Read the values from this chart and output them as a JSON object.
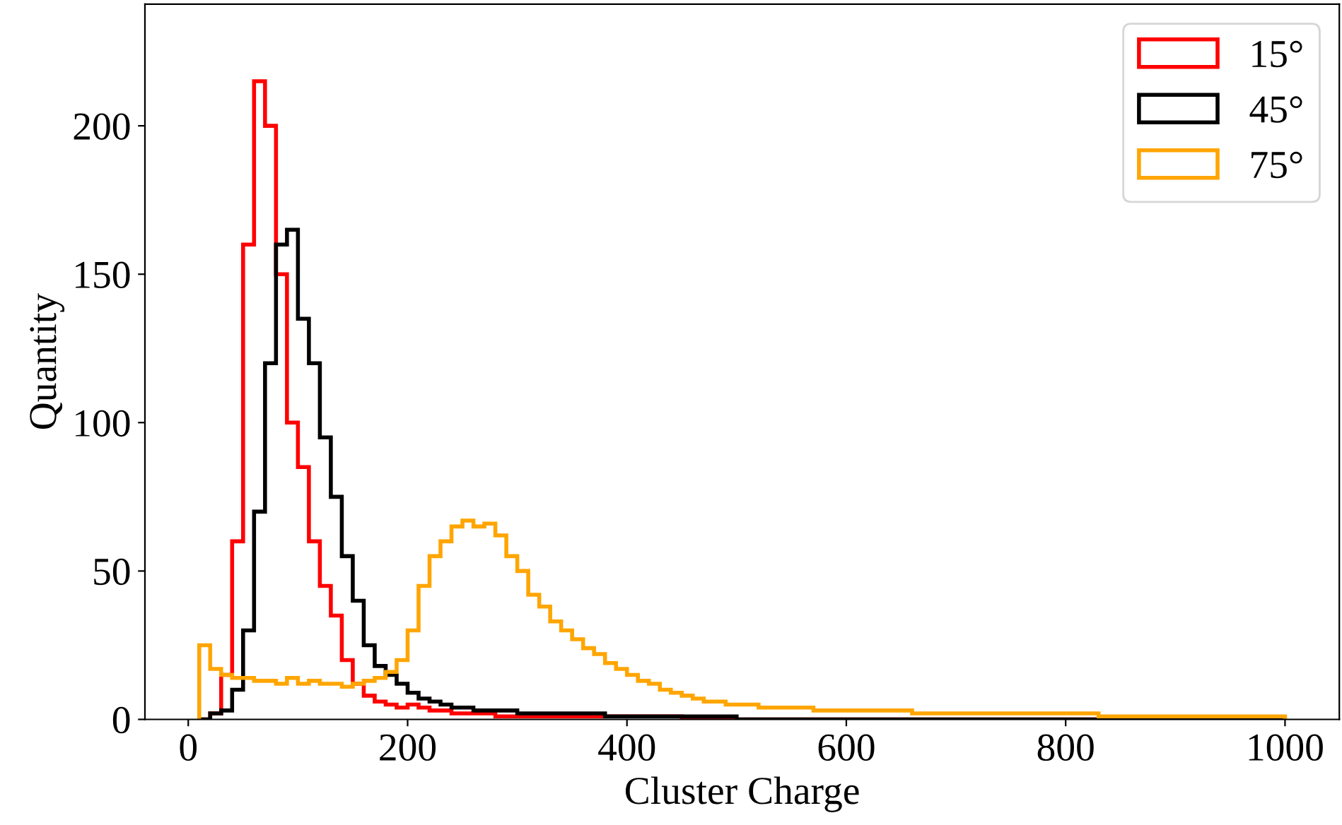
{
  "chart_data": {
    "type": "histogram",
    "xlabel": "Cluster Charge",
    "ylabel": "Quantity",
    "bins": [
      10,
      20,
      30,
      40,
      50,
      60,
      70,
      80,
      90,
      100,
      110,
      120,
      130,
      140,
      150,
      160,
      170,
      180,
      190,
      200,
      210,
      220,
      230,
      240,
      250,
      260,
      270,
      280,
      290,
      300,
      310,
      320,
      330,
      340,
      350,
      360,
      370,
      380,
      390,
      400,
      410,
      420,
      430,
      440,
      450,
      460,
      470,
      480,
      490,
      500,
      510,
      520,
      530,
      540,
      550,
      560,
      570,
      580,
      590,
      600,
      610,
      620,
      630,
      640,
      650,
      660,
      670,
      680,
      690,
      700,
      710,
      720,
      730,
      740,
      750,
      760,
      770,
      780,
      790,
      800,
      810,
      820,
      830,
      840,
      850,
      860,
      870,
      880,
      890,
      900,
      910,
      920,
      930,
      940,
      950,
      960,
      970,
      980,
      990,
      1000
    ],
    "series": [
      {
        "name": "15°",
        "color": "#ff0000",
        "values": [
          0,
          2,
          15,
          60,
          160,
          215,
          200,
          150,
          100,
          85,
          60,
          45,
          35,
          20,
          12,
          8,
          6,
          5,
          4,
          5,
          4,
          3,
          3,
          2,
          2,
          2,
          2,
          1,
          1,
          1,
          1,
          1,
          1,
          1,
          1,
          1,
          1,
          1,
          1,
          1,
          1,
          1,
          1,
          1,
          0,
          0,
          0,
          0,
          0,
          0,
          0,
          0,
          0,
          0,
          0,
          0,
          0,
          0,
          0,
          0,
          0,
          0,
          0,
          0,
          0,
          0,
          0,
          0,
          0,
          0,
          0,
          0,
          0,
          0,
          0,
          0,
          0,
          0,
          0,
          0,
          0,
          0,
          0,
          0,
          0,
          0,
          0,
          0,
          0,
          0,
          0,
          0,
          0,
          0,
          0,
          0,
          0,
          0,
          0
        ]
      },
      {
        "name": "45°",
        "color": "#000000",
        "values": [
          0,
          2,
          3,
          10,
          30,
          70,
          120,
          160,
          165,
          135,
          120,
          95,
          75,
          55,
          40,
          25,
          18,
          15,
          12,
          9,
          7,
          6,
          5,
          4,
          4,
          3,
          3,
          3,
          3,
          2,
          2,
          2,
          2,
          2,
          2,
          2,
          2,
          1,
          1,
          1,
          1,
          1,
          1,
          1,
          1,
          1,
          1,
          1,
          1,
          0,
          0,
          0,
          0,
          0,
          0,
          0,
          0,
          0,
          0,
          0,
          0,
          0,
          0,
          0,
          0,
          0,
          0,
          0,
          0,
          0,
          0,
          0,
          0,
          0,
          0,
          0,
          0,
          0,
          0,
          0,
          0,
          0,
          0,
          0,
          0,
          0,
          0,
          0,
          0,
          0,
          0,
          0,
          0,
          0,
          0,
          0,
          0,
          0,
          0
        ]
      },
      {
        "name": "75°",
        "color": "#ffa500",
        "values": [
          25,
          17,
          15,
          14,
          14,
          13,
          13,
          12,
          14,
          12,
          13,
          12,
          12,
          11,
          12,
          13,
          14,
          16,
          20,
          30,
          45,
          55,
          60,
          65,
          67,
          65,
          66,
          62,
          55,
          50,
          42,
          38,
          33,
          30,
          27,
          24,
          22,
          19,
          17,
          15,
          13,
          12,
          10,
          9,
          8,
          7,
          6,
          6,
          5,
          5,
          5,
          4,
          4,
          4,
          4,
          4,
          3,
          3,
          3,
          3,
          3,
          3,
          3,
          3,
          3,
          2,
          2,
          2,
          2,
          2,
          2,
          2,
          2,
          2,
          2,
          2,
          2,
          2,
          2,
          2,
          2,
          2,
          1,
          1,
          1,
          1,
          1,
          1,
          1,
          1,
          1,
          1,
          1,
          1,
          1,
          1,
          1,
          1,
          1
        ]
      }
    ],
    "xlim": [
      -39.5,
      1049.5
    ],
    "ylim": [
      0,
      241
    ],
    "xticks": [
      0,
      200,
      400,
      600,
      800,
      1000
    ],
    "yticks": [
      0,
      50,
      100,
      150,
      200
    ],
    "grid": false,
    "legend": "top right"
  }
}
